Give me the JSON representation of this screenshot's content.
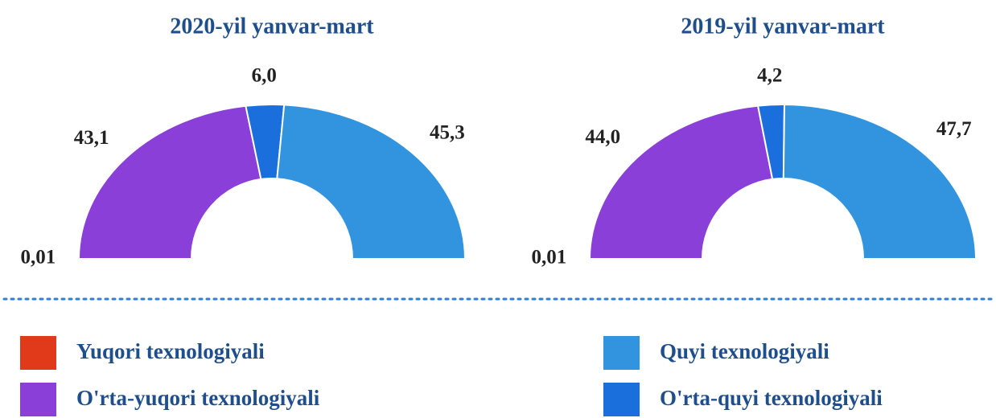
{
  "chart_data": [
    {
      "type": "pie",
      "title": "2020-yil yanvar-mart",
      "categories": [
        "Yuqori texnologiyali",
        "O'rta-yuqori texnologiyali",
        "O'rta-quyi texnologiyali",
        "Quyi texnologiyali"
      ],
      "values": [
        0.01,
        43.1,
        6.0,
        45.3
      ],
      "value_labels": [
        "0,01",
        "43,1",
        "6,0",
        "45,3"
      ],
      "colors": [
        "#e03a1a",
        "#8b3fd9",
        "#1a6fdc",
        "#3294de"
      ]
    },
    {
      "type": "pie",
      "title": "2019-yil yanvar-mart",
      "categories": [
        "Yuqori texnologiyali",
        "O'rta-yuqori texnologiyali",
        "O'rta-quyi texnologiyali",
        "Quyi texnologiyali"
      ],
      "values": [
        0.01,
        44.0,
        4.2,
        47.7
      ],
      "value_labels": [
        "0,01",
        "44,0",
        "4,2",
        "47,7"
      ],
      "colors": [
        "#e03a1a",
        "#8b3fd9",
        "#1a6fdc",
        "#3294de"
      ]
    }
  ]
}
